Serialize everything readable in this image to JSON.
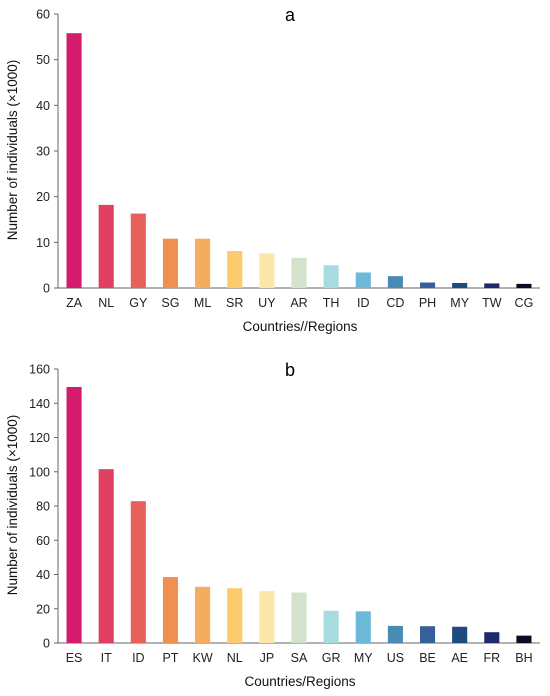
{
  "chart_data": [
    {
      "type": "bar",
      "title": "a",
      "xlabel": "Countries//Regions",
      "ylabel": "Number of individuals (×1000)",
      "ylim": [
        0,
        60
      ],
      "yticks": [
        0,
        10,
        20,
        30,
        40,
        50,
        60
      ],
      "grid": false,
      "categories": [
        "ZA",
        "NL",
        "GY",
        "SG",
        "ML",
        "SR",
        "UY",
        "AR",
        "TH",
        "ID",
        "CD",
        "PH",
        "MY",
        "TW",
        "CG"
      ],
      "values": [
        55.8,
        18.2,
        16.3,
        10.8,
        10.8,
        8.1,
        7.6,
        6.6,
        5.0,
        3.4,
        2.6,
        1.2,
        1.1,
        1.0,
        0.9
      ],
      "colors": [
        "#d41c6c",
        "#e04060",
        "#e8605a",
        "#f09050",
        "#f5ac60",
        "#fbcb6c",
        "#fde6aa",
        "#d3e2cb",
        "#a8dbe0",
        "#6cb8d8",
        "#4a8bb4",
        "#36609a",
        "#1f4a7e",
        "#1c2a6c",
        "#0a0c26"
      ]
    },
    {
      "type": "bar",
      "title": "b",
      "xlabel": "Countries/Regions",
      "ylabel": "Number of individuals (×1000)",
      "ylim": [
        0,
        160
      ],
      "yticks": [
        0,
        20,
        40,
        60,
        80,
        100,
        120,
        140,
        160
      ],
      "grid": false,
      "categories": [
        "ES",
        "IT",
        "ID",
        "PT",
        "KW",
        "NL",
        "JP",
        "SA",
        "GR",
        "MY",
        "US",
        "BE",
        "AE",
        "FR",
        "BH"
      ],
      "values": [
        149.5,
        101.5,
        82.8,
        38.5,
        32.8,
        32.0,
        30.3,
        29.5,
        18.8,
        18.5,
        10.0,
        9.8,
        9.5,
        6.3,
        4.3
      ],
      "colors": [
        "#d41c6c",
        "#e04060",
        "#e8605a",
        "#f09050",
        "#f5ac60",
        "#fbcb6c",
        "#fde6aa",
        "#d3e2cb",
        "#a8dbe0",
        "#6cb8d8",
        "#4a8bb4",
        "#36609a",
        "#1f4a7e",
        "#1c2a6c",
        "#0a0c26"
      ]
    }
  ]
}
